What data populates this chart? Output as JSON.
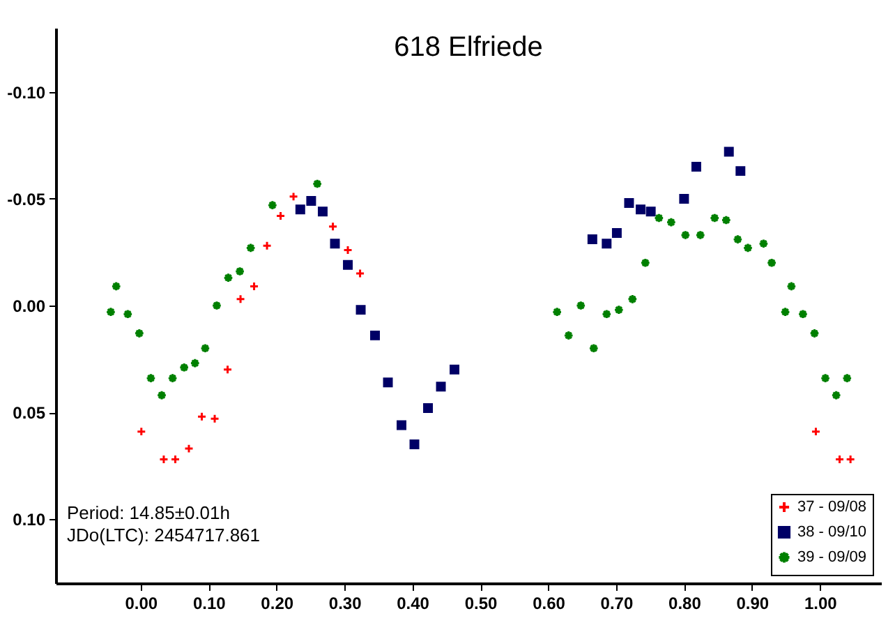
{
  "chart_data": {
    "type": "scatter",
    "title": "618 Elfriede",
    "annotations": [
      "Period: 14.85±0.01h",
      "JDo(LTC): 2454717.861"
    ],
    "xlim": [
      -0.125,
      1.09
    ],
    "ylim": [
      0.13,
      -0.13
    ],
    "xticks": [
      {
        "value": 0,
        "label": "0.00"
      },
      {
        "value": 0.1,
        "label": "0.10"
      },
      {
        "value": 0.2,
        "label": "0.20"
      },
      {
        "value": 0.3,
        "label": "0.30"
      },
      {
        "value": 0.4,
        "label": "0.40"
      },
      {
        "value": 0.5,
        "label": "0.50"
      },
      {
        "value": 0.6,
        "label": "0.60"
      },
      {
        "value": 0.7,
        "label": "0.70"
      },
      {
        "value": 0.8,
        "label": "0.80"
      },
      {
        "value": 0.9,
        "label": "0.90"
      },
      {
        "value": 1,
        "label": "1.00"
      }
    ],
    "yticks": [
      {
        "value": -0.1,
        "label": "-0.10"
      },
      {
        "value": -0.05,
        "label": "-0.05"
      },
      {
        "value": 0,
        "label": "0.00"
      },
      {
        "value": 0.05,
        "label": "0.05"
      },
      {
        "value": 0.1,
        "label": "0.10"
      }
    ],
    "grid": false,
    "legend": "bottom right",
    "series": [
      {
        "name": "37 - 09/08",
        "color": "#ff0000",
        "marker": "cross",
        "x": [
          0.001,
          0.034,
          0.051,
          0.071,
          0.09,
          0.109,
          0.128,
          0.147,
          0.167,
          0.186,
          0.206,
          0.225,
          0.247,
          0.283,
          0.305,
          0.323,
          0.994,
          1.029,
          1.045
        ],
        "values": [
          0.059,
          0.072,
          0.072,
          0.067,
          0.052,
          0.053,
          0.03,
          -0.003,
          -0.009,
          -0.028,
          -0.042,
          -0.051,
          null,
          -0.037,
          -0.026,
          -0.015,
          0.059,
          0.072,
          0.072
        ]
      },
      {
        "name": "38 - 09/10",
        "color": "#000066",
        "marker": "square",
        "x": [
          0.235,
          0.251,
          0.268,
          0.286,
          0.305,
          0.324,
          0.345,
          0.364,
          0.384,
          0.403,
          0.423,
          0.442,
          0.462,
          0.665,
          0.686,
          0.701,
          0.719,
          0.736,
          0.751,
          0.8,
          0.818,
          0.866,
          0.883
        ],
        "values": [
          -0.045,
          -0.049,
          -0.044,
          -0.029,
          -0.019,
          0.002,
          0.014,
          0.036,
          0.056,
          0.065,
          0.048,
          0.038,
          0.03,
          -0.031,
          -0.029,
          -0.034,
          -0.048,
          -0.045,
          -0.044,
          -0.05,
          -0.065,
          -0.072,
          -0.063
        ]
      },
      {
        "name": "39 - 09/09",
        "color": "#008000",
        "marker": "star",
        "x": [
          -0.044,
          -0.036,
          -0.019,
          -0.002,
          0.015,
          0.031,
          0.047,
          0.064,
          0.08,
          0.095,
          0.112,
          0.129,
          0.146,
          0.162,
          0.194,
          0.26,
          0.613,
          0.63,
          0.648,
          0.667,
          0.686,
          0.704,
          0.724,
          0.743,
          0.763,
          0.781,
          0.802,
          0.824,
          0.845,
          0.862,
          0.879,
          0.894,
          0.917,
          0.929,
          0.949,
          0.958,
          0.975,
          0.992,
          1.008,
          1.024,
          1.04
        ],
        "values": [
          0.003,
          -0.009,
          0.004,
          0.013,
          0.034,
          0.042,
          0.034,
          0.029,
          0.027,
          0.02,
          0.0,
          -0.013,
          -0.016,
          -0.027,
          -0.047,
          -0.057,
          0.003,
          0.014,
          0.0,
          0.02,
          0.004,
          0.002,
          -0.003,
          -0.02,
          -0.041,
          -0.039,
          -0.033,
          -0.033,
          -0.041,
          -0.04,
          -0.031,
          -0.027,
          -0.029,
          -0.02,
          0.003,
          -0.009,
          0.004,
          0.013,
          0.034,
          0.042,
          0.034
        ]
      }
    ]
  }
}
